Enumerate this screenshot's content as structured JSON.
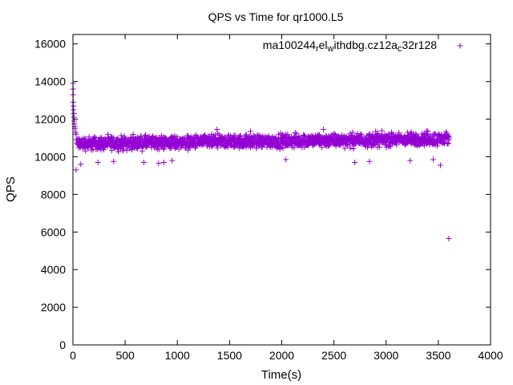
{
  "chart_data": {
    "type": "scatter",
    "title": "QPS vs Time for qr1000.L5",
    "xlabel": "Time(s)",
    "ylabel": "QPS",
    "xlim": [
      0,
      4000
    ],
    "ylim": [
      0,
      16500
    ],
    "xticks": [
      0,
      500,
      1000,
      1500,
      2000,
      2500,
      3000,
      3500,
      4000
    ],
    "yticks": [
      0,
      2000,
      4000,
      6000,
      8000,
      10000,
      12000,
      14000,
      16000
    ],
    "grid": false,
    "legend": "top-right",
    "marker": "plus",
    "color": "#9400d3",
    "series": [
      {
        "name": "ma100244_rel_withdbg.cz12a_c32r128",
        "legend_parts": [
          {
            "text": "ma100244",
            "sub": false
          },
          {
            "text": "r",
            "sub": true
          },
          {
            "text": "el",
            "sub": false
          },
          {
            "text": "w",
            "sub": true
          },
          {
            "text": "ithdbg.cz12a",
            "sub": false
          },
          {
            "text": "c",
            "sub": true
          },
          {
            "text": "32r128",
            "sub": false
          }
        ],
        "points": [
          [
            1,
            13900
          ],
          [
            2,
            13600
          ],
          [
            3,
            13300
          ],
          [
            4,
            12900
          ],
          [
            5,
            12700
          ],
          [
            6,
            12500
          ],
          [
            8,
            12300
          ],
          [
            10,
            12100
          ],
          [
            12,
            11900
          ],
          [
            15,
            11750
          ],
          [
            18,
            11600
          ],
          [
            20,
            11500
          ],
          [
            25,
            11300
          ],
          [
            30,
            11200
          ],
          [
            35,
            10900
          ],
          [
            40,
            10700
          ],
          [
            30,
            9300
          ],
          [
            75,
            9600
          ],
          [
            240,
            9700
          ],
          [
            390,
            9750
          ],
          [
            680,
            9700
          ],
          [
            820,
            9650
          ],
          [
            870,
            9700
          ],
          [
            950,
            9800
          ],
          [
            2040,
            9850
          ],
          [
            2700,
            9700
          ],
          [
            2840,
            9750
          ],
          [
            3230,
            9800
          ],
          [
            3450,
            9850
          ],
          [
            3520,
            9550
          ],
          [
            3600,
            5650
          ],
          [
            1380,
            11450
          ],
          [
            2400,
            11450
          ],
          [
            1700,
            11350
          ],
          [
            2900,
            11350
          ],
          [
            3400,
            11350
          ]
        ]
      }
    ],
    "band": {
      "x_start": 40,
      "x_end": 3600,
      "x_step": 4,
      "center": 10800,
      "spread": 300,
      "trend_start": -100,
      "trend_end": 150
    }
  }
}
